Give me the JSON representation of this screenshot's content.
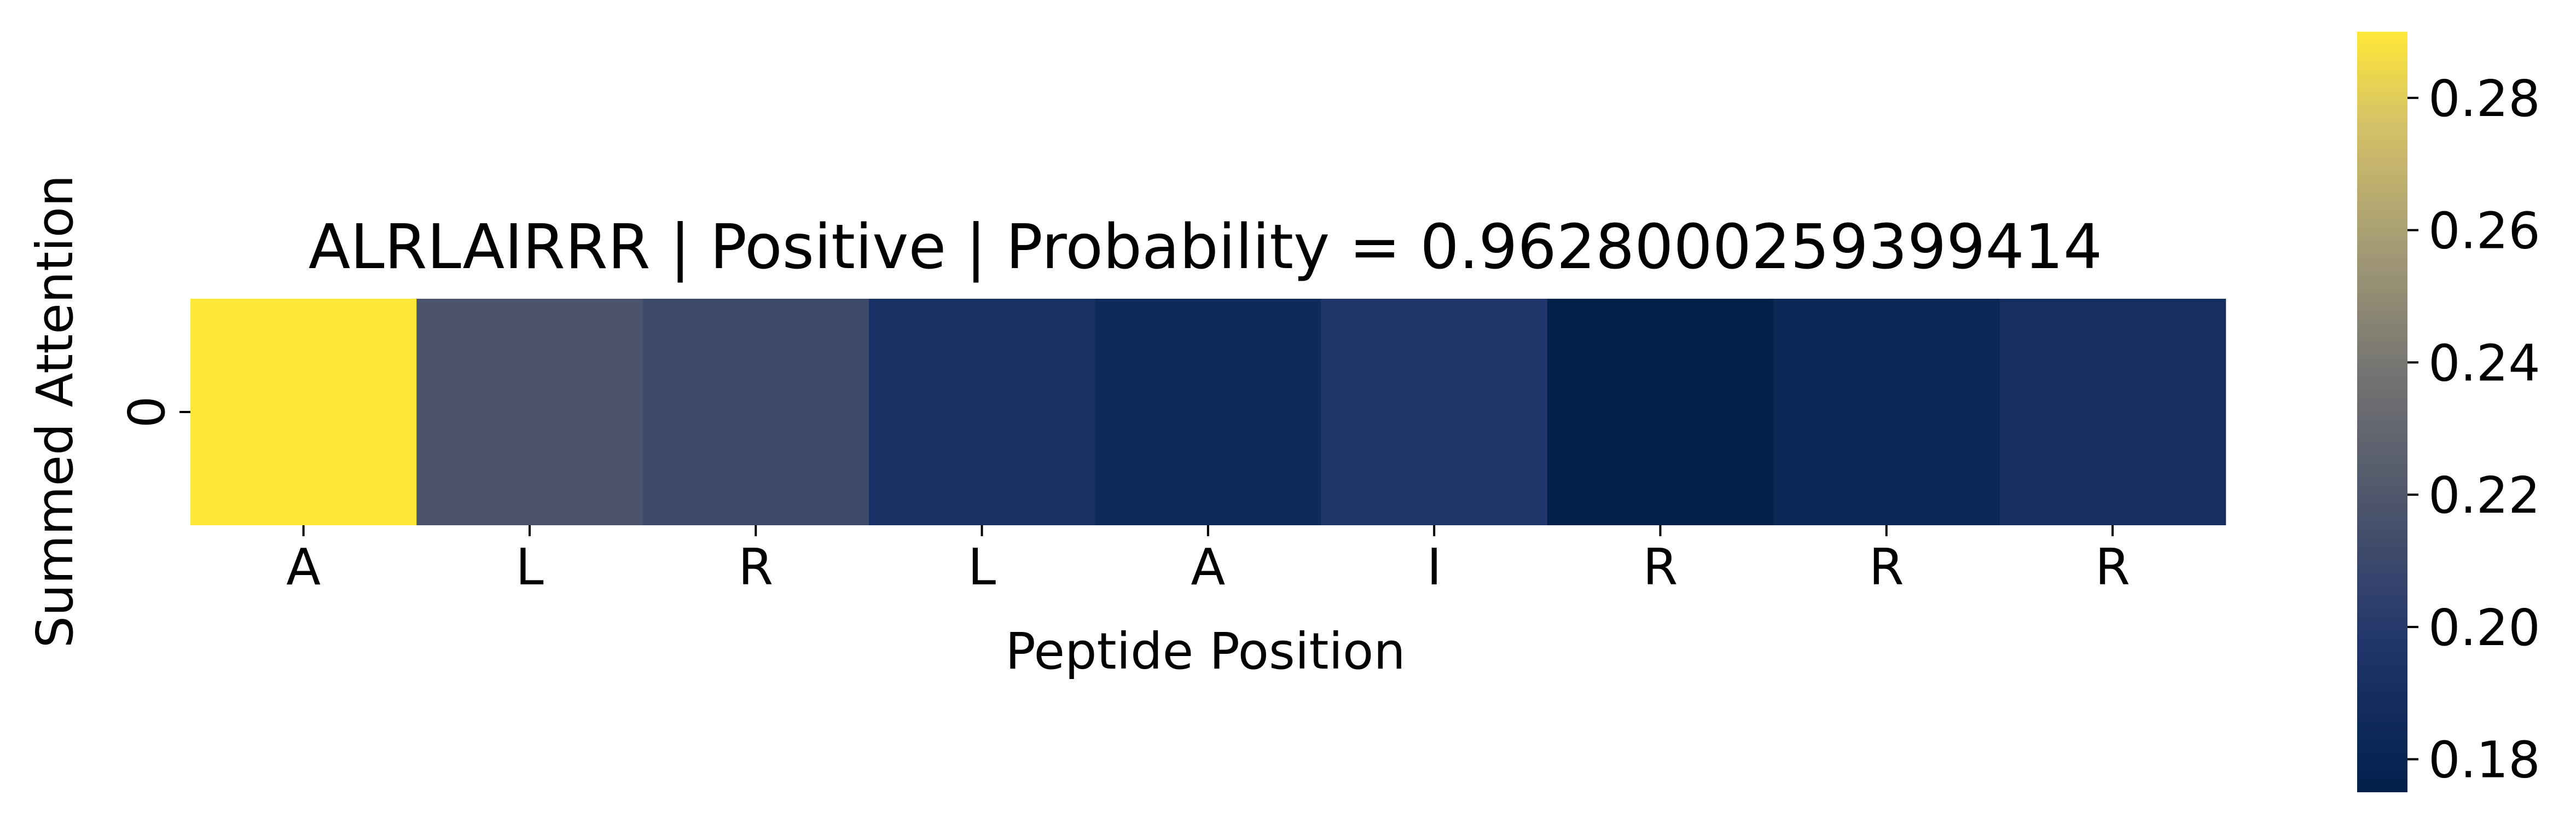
{
  "chart_data": {
    "type": "heatmap",
    "title": "ALRLAIRRR | Positive | Probability = 0.9628000259399414",
    "xlabel": "Peptide Position",
    "ylabel": "Summed Attention",
    "x_categories": [
      "A",
      "L",
      "R",
      "L",
      "A",
      "I",
      "R",
      "R",
      "R"
    ],
    "y_categories": [
      "0"
    ],
    "values": [
      [
        0.29,
        0.218,
        0.211,
        0.192,
        0.185,
        0.198,
        0.175,
        0.182,
        0.19
      ]
    ],
    "colormap": "cividis",
    "colorbar": {
      "vmin": 0.175,
      "vmax": 0.29,
      "ticks": [
        0.18,
        0.2,
        0.22,
        0.24,
        0.26,
        0.28
      ],
      "tick_labels": [
        "0.18",
        "0.20",
        "0.22",
        "0.24",
        "0.26",
        "0.28"
      ]
    }
  }
}
